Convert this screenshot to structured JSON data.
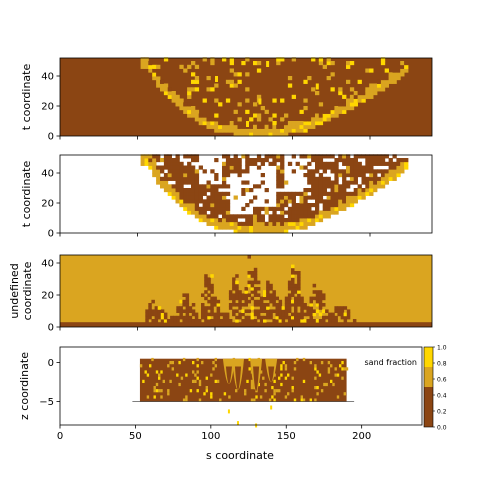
{
  "colors": {
    "mud": "#8b4513",
    "sand": "#daa520",
    "bright": "#ffd700",
    "empty": "#ffffff"
  },
  "chart_data": [
    {
      "type": "heatmap",
      "ylabel": "t coordinate",
      "xlim": [
        0,
        240
      ],
      "ylim": [
        0,
        52
      ],
      "yticks": [
        0,
        20,
        40
      ],
      "fill": "mud",
      "sand_boundary": [
        {
          "s": 55,
          "t": 48
        },
        {
          "s": 65,
          "t": 30
        },
        {
          "s": 78,
          "t": 18
        },
        {
          "s": 95,
          "t": 6
        },
        {
          "s": 115,
          "t": 2
        },
        {
          "s": 140,
          "t": 2
        },
        {
          "s": 160,
          "t": 6
        },
        {
          "s": 180,
          "t": 16
        },
        {
          "s": 200,
          "t": 28
        },
        {
          "s": 215,
          "t": 38
        },
        {
          "s": 222,
          "t": 44
        }
      ],
      "channels": [
        {
          "s": 120,
          "t": 10
        },
        {
          "s": 128,
          "t": 25
        },
        {
          "s": 133,
          "t": 50
        },
        {
          "s": 165,
          "t": 35
        },
        {
          "s": 100,
          "t": 40
        }
      ]
    },
    {
      "type": "heatmap",
      "ylabel": "t coordinate",
      "xlim": [
        0,
        240
      ],
      "ylim": [
        0,
        52
      ],
      "yticks": [
        0,
        20,
        40
      ],
      "fill": "empty",
      "sand_boundary": [
        {
          "s": 55,
          "t": 48
        },
        {
          "s": 65,
          "t": 30
        },
        {
          "s": 78,
          "t": 18
        },
        {
          "s": 95,
          "t": 6
        },
        {
          "s": 115,
          "t": 2
        },
        {
          "s": 140,
          "t": 2
        },
        {
          "s": 160,
          "t": 6
        },
        {
          "s": 180,
          "t": 16
        },
        {
          "s": 200,
          "t": 28
        },
        {
          "s": 215,
          "t": 38
        },
        {
          "s": 222,
          "t": 44
        }
      ],
      "gaps": [
        {
          "s": 95,
          "t": 45
        },
        {
          "s": 115,
          "t": 25
        },
        {
          "s": 130,
          "t": 30
        },
        {
          "s": 150,
          "t": 40
        }
      ]
    },
    {
      "type": "heatmap",
      "ylabel": "undefined\ncoordinate",
      "xlim": [
        0,
        240
      ],
      "ylim": [
        0,
        45
      ],
      "yticks": [
        0,
        20,
        40
      ],
      "fill": "sand",
      "base_layer": {
        "from": 0,
        "to": 3
      },
      "body": {
        "s_start": 55,
        "s_end": 190,
        "peaks": [
          {
            "s": 60,
            "h": 18
          },
          {
            "s": 80,
            "h": 22
          },
          {
            "s": 95,
            "h": 34
          },
          {
            "s": 112,
            "h": 32
          },
          {
            "s": 123,
            "h": 45
          },
          {
            "s": 135,
            "h": 32
          },
          {
            "s": 150,
            "h": 38
          },
          {
            "s": 165,
            "h": 28
          },
          {
            "s": 180,
            "h": 16
          }
        ]
      }
    },
    {
      "type": "heatmap",
      "xlabel": "s coordinate",
      "ylabel": "z coordinate",
      "xlim": [
        0,
        240
      ],
      "ylim": [
        -8,
        2
      ],
      "yticks": [
        -5,
        0
      ],
      "xticks": [
        0,
        50,
        100,
        150,
        200
      ],
      "body": {
        "s_start": 53,
        "s_end": 190,
        "top": 0.5,
        "bottom": -5
      },
      "channels": [
        {
          "s": 112,
          "depth": -6
        },
        {
          "s": 118,
          "depth": -7.5
        },
        {
          "s": 130,
          "depth": -7.8
        },
        {
          "s": 140,
          "depth": -5.5
        }
      ],
      "colorbar": {
        "label": "sand fraction",
        "ticks": [
          0.0,
          0.2,
          0.4,
          0.6,
          0.8,
          1.0
        ],
        "bands": [
          {
            "from": 0.0,
            "to": 0.25,
            "color": "mud"
          },
          {
            "from": 0.25,
            "to": 0.5,
            "color": "mud"
          },
          {
            "from": 0.5,
            "to": 0.75,
            "color": "sand"
          },
          {
            "from": 0.75,
            "to": 1.0,
            "color": "bright"
          }
        ]
      }
    }
  ],
  "tick_labels": {
    "x": [
      "0",
      "50",
      "100",
      "150",
      "200"
    ],
    "t": [
      "0",
      "20",
      "40"
    ],
    "z": [
      "−5",
      "0"
    ],
    "cbar": [
      "0.0",
      "0.2",
      "0.4",
      "0.6",
      "0.8",
      "1.0"
    ]
  }
}
